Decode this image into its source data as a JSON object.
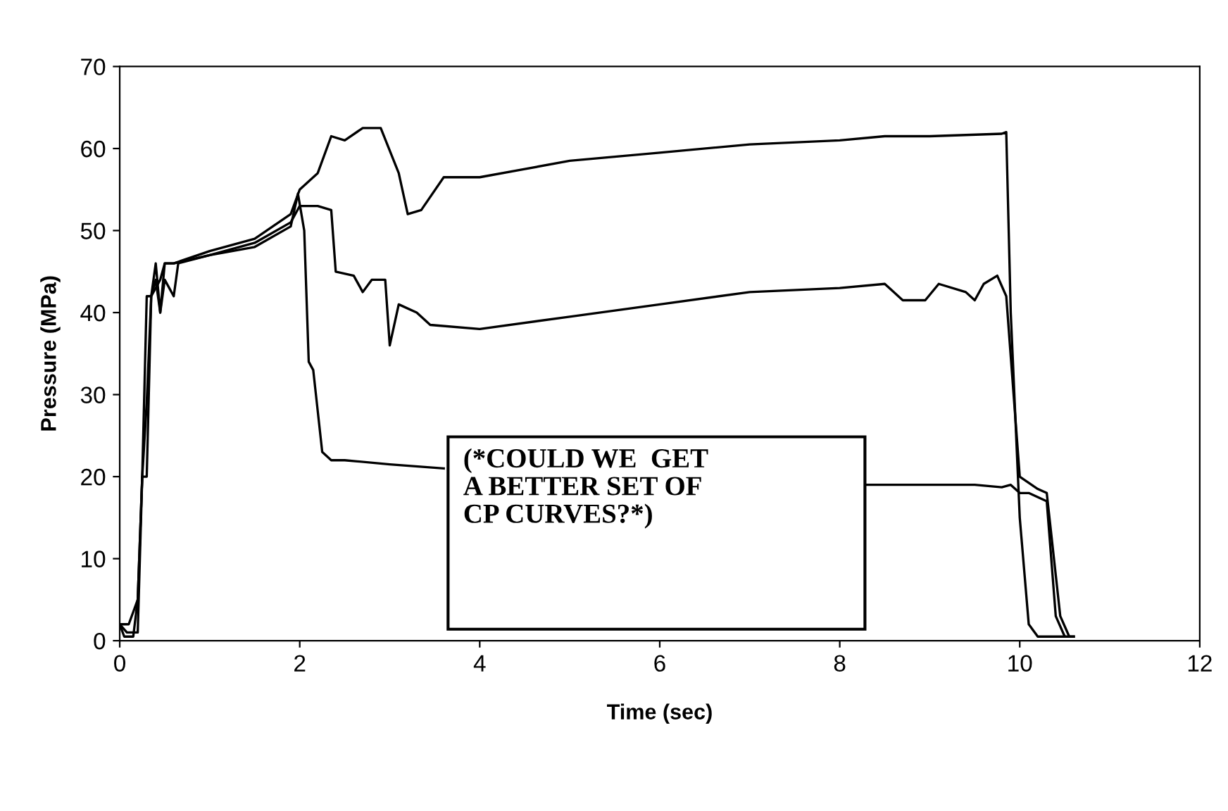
{
  "chart_data": {
    "type": "line",
    "xlabel": "Time (sec)",
    "ylabel": "Pressure (MPa)",
    "xlim": [
      0,
      12
    ],
    "xticks": [
      0,
      2,
      4,
      6,
      8,
      10,
      12
    ],
    "ylim": [
      0,
      70
    ],
    "yticks": [
      0,
      10,
      20,
      30,
      40,
      50,
      60,
      70
    ],
    "grid": false,
    "marker": "none",
    "line_style": "solid",
    "annotations": [
      "(*COULD WE  GET\nA BETTER SET OF\nCP CURVES?*)"
    ],
    "series": [
      {
        "color": "#000000",
        "x": [
          0,
          0.08,
          0.2,
          0.25,
          0.3,
          0.35,
          0.4,
          0.45,
          0.5,
          0.6,
          1,
          1.5,
          1.9,
          2.0,
          2.2,
          2.35,
          2.5,
          2.7,
          2.9,
          3.1,
          3.2,
          3.35,
          3.6,
          4,
          4.5,
          5,
          6,
          7,
          8,
          8.5,
          9,
          9.8,
          9.85,
          9.9,
          10,
          10.1,
          10.2,
          10.5
        ],
        "values": [
          2,
          1,
          1,
          20,
          42,
          42,
          46,
          40,
          46,
          46,
          47.5,
          49,
          52,
          55,
          57,
          61.5,
          61,
          62.5,
          62.5,
          57,
          52,
          52.5,
          56.5,
          56.5,
          57.5,
          58.5,
          59.5,
          60.5,
          61,
          61.5,
          61.5,
          61.8,
          62,
          40,
          15,
          2,
          0.5,
          0.5
        ]
      },
      {
        "color": "#000000",
        "x": [
          0,
          0.1,
          0.2,
          0.25,
          0.3,
          0.35,
          0.4,
          0.45,
          0.5,
          0.6,
          0.65,
          1,
          1.5,
          1.9,
          2.0,
          2.2,
          2.35,
          2.4,
          2.6,
          2.7,
          2.8,
          2.95,
          3.0,
          3.1,
          3.3,
          3.45,
          4,
          5,
          6,
          7,
          8,
          8.5,
          8.7,
          8.95,
          9.1,
          9.4,
          9.5,
          9.6,
          9.75,
          9.85,
          10,
          10.2,
          10.3,
          10.45,
          10.55,
          10.6
        ],
        "values": [
          2,
          2,
          5,
          20,
          20,
          42,
          44,
          40,
          44,
          42,
          46,
          47,
          48.5,
          51,
          53,
          53,
          52.5,
          45,
          44.5,
          42.5,
          44,
          44,
          36,
          41,
          40,
          38.5,
          38,
          39.5,
          41,
          42.5,
          43,
          43.5,
          41.5,
          41.5,
          43.5,
          42.5,
          41.5,
          43.5,
          44.5,
          42,
          20,
          18.5,
          18,
          3,
          0.5,
          0.5
        ]
      },
      {
        "color": "#000000",
        "x": [
          0,
          0.05,
          0.15,
          0.2,
          0.25,
          0.3,
          0.35,
          0.45,
          0.5,
          0.6,
          1,
          1.5,
          1.9,
          1.98,
          2.05,
          2.1,
          2.15,
          2.25,
          2.35,
          2.5,
          3,
          3.6,
          3.65,
          8.3,
          9,
          9.5,
          9.8,
          9.9,
          10.0,
          10.1,
          10.3,
          10.4,
          10.5,
          10.6
        ],
        "values": [
          2,
          0.5,
          0.5,
          5,
          20,
          29,
          42,
          44,
          46,
          46,
          47,
          48,
          50.5,
          54.5,
          50,
          34,
          33,
          23,
          22,
          22,
          21.5,
          21,
          null,
          19,
          19,
          19,
          18.7,
          19,
          18,
          18,
          17,
          3,
          0.5,
          0.5
        ]
      }
    ]
  }
}
